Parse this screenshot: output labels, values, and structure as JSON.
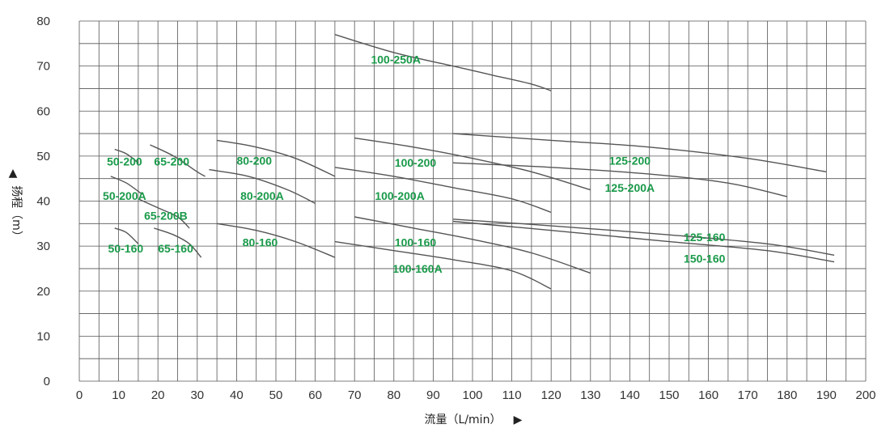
{
  "chart_data": {
    "type": "line",
    "xlabel": "流量（L/min）",
    "ylabel": "扬程（m）",
    "x_arrow": "▶",
    "y_arrow": "▲",
    "xlim": [
      0,
      200
    ],
    "ylim": [
      0,
      80
    ],
    "x_ticks": [
      0,
      10,
      20,
      30,
      40,
      50,
      60,
      70,
      80,
      90,
      100,
      110,
      120,
      130,
      140,
      150,
      160,
      170,
      180,
      190,
      200
    ],
    "y_ticks": [
      0,
      10,
      20,
      30,
      40,
      50,
      60,
      70,
      80
    ],
    "grid": true,
    "colors": {
      "curve": "#555555",
      "label": "#1a9a4a",
      "grid": "#555555"
    },
    "series": [
      {
        "name": "50-200",
        "x": [
          9,
          12,
          15
        ],
        "y": [
          51.5,
          50.5,
          48.5
        ]
      },
      {
        "name": "65-200",
        "x": [
          18,
          24,
          30,
          32
        ],
        "y": [
          52.5,
          50.0,
          46.5,
          45.5
        ]
      },
      {
        "name": "50-200A",
        "x": [
          8,
          12,
          16
        ],
        "y": [
          45.5,
          44.0,
          41.5
        ]
      },
      {
        "name": "65-200B",
        "x": [
          15,
          20,
          25,
          28
        ],
        "y": [
          40.5,
          38.5,
          36.5,
          34.0
        ]
      },
      {
        "name": "50-160",
        "x": [
          9,
          12,
          15
        ],
        "y": [
          34.0,
          33.0,
          30.5
        ]
      },
      {
        "name": "65-160",
        "x": [
          19,
          24,
          28,
          31
        ],
        "y": [
          34.0,
          32.5,
          30.5,
          27.5
        ]
      },
      {
        "name": "80-200",
        "x": [
          35,
          45,
          55,
          65
        ],
        "y": [
          53.5,
          52.0,
          49.5,
          45.5
        ]
      },
      {
        "name": "80-200A",
        "x": [
          33,
          43,
          53,
          60
        ],
        "y": [
          47.0,
          45.5,
          42.5,
          39.5
        ]
      },
      {
        "name": "80-160",
        "x": [
          35,
          45,
          55,
          65
        ],
        "y": [
          35.0,
          33.5,
          31.0,
          27.5
        ]
      },
      {
        "name": "100-250A",
        "x": [
          65,
          80,
          95,
          105,
          115,
          120
        ],
        "y": [
          77.0,
          73.0,
          70.0,
          68.0,
          66.0,
          64.5
        ]
      },
      {
        "name": "100-200",
        "x": [
          70,
          85,
          100,
          115,
          130
        ],
        "y": [
          54.0,
          52.0,
          49.5,
          46.5,
          42.5
        ]
      },
      {
        "name": "100-200A",
        "x": [
          65,
          80,
          95,
          110,
          120
        ],
        "y": [
          47.5,
          45.5,
          43.0,
          40.5,
          37.5
        ]
      },
      {
        "name": "100-160",
        "x": [
          70,
          85,
          100,
          115,
          130
        ],
        "y": [
          36.5,
          34.0,
          31.5,
          28.5,
          24.0
        ]
      },
      {
        "name": "100-160A",
        "x": [
          65,
          80,
          95,
          110,
          120
        ],
        "y": [
          31.0,
          29.0,
          27.0,
          24.5,
          20.5
        ]
      },
      {
        "name": "125-200",
        "x": [
          95,
          120,
          145,
          170,
          190
        ],
        "y": [
          55.0,
          53.5,
          52.0,
          49.5,
          46.5
        ]
      },
      {
        "name": "125-200A",
        "x": [
          95,
          120,
          145,
          165,
          180
        ],
        "y": [
          48.5,
          47.5,
          46.0,
          44.0,
          41.0
        ]
      },
      {
        "name": "125-160",
        "x": [
          95,
          120,
          150,
          175,
          192
        ],
        "y": [
          36.0,
          34.5,
          32.5,
          30.5,
          28.0
        ]
      },
      {
        "name": "150-160",
        "x": [
          95,
          120,
          150,
          175,
          192
        ],
        "y": [
          35.5,
          33.5,
          31.0,
          29.0,
          26.5
        ]
      }
    ],
    "labels": [
      {
        "text": "100-250A",
        "x": 80.5,
        "y": 71.5
      },
      {
        "text": "50-200",
        "x": 11.5,
        "y": 48.8
      },
      {
        "text": "65-200",
        "x": 23.5,
        "y": 48.8
      },
      {
        "text": "80-200",
        "x": 44.5,
        "y": 49.0
      },
      {
        "text": "100-200",
        "x": 85.5,
        "y": 48.5
      },
      {
        "text": "125-200",
        "x": 140,
        "y": 49.0
      },
      {
        "text": "50-200A",
        "x": 11.5,
        "y": 41.2
      },
      {
        "text": "80-200A",
        "x": 46.5,
        "y": 41.2
      },
      {
        "text": "100-200A",
        "x": 81.5,
        "y": 41.2
      },
      {
        "text": "125-200A",
        "x": 140,
        "y": 43.0
      },
      {
        "text": "65-200B",
        "x": 22,
        "y": 36.8
      },
      {
        "text": "80-160",
        "x": 46,
        "y": 30.8
      },
      {
        "text": "100-160",
        "x": 85.5,
        "y": 30.8
      },
      {
        "text": "125-160",
        "x": 159,
        "y": 32.0
      },
      {
        "text": "50-160",
        "x": 11.8,
        "y": 29.5
      },
      {
        "text": "65-160",
        "x": 24.5,
        "y": 29.5
      },
      {
        "text": "150-160",
        "x": 159,
        "y": 27.2
      },
      {
        "text": "100-160A",
        "x": 86,
        "y": 25.0
      }
    ]
  }
}
